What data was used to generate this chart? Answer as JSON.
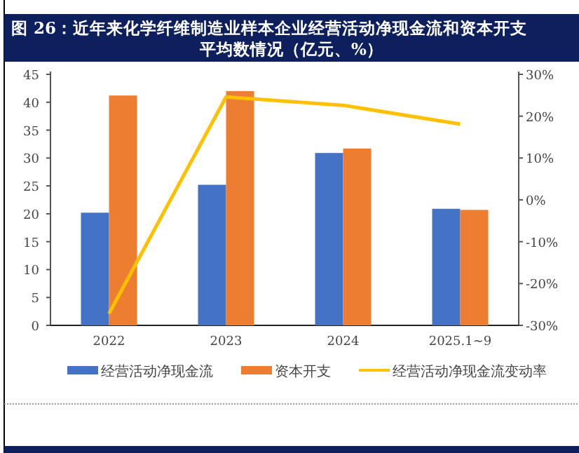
{
  "chart_data": {
    "type": "bar",
    "title": "图 26：近年来化学纤维制造业样本企业经营活动净现金流和资本开支平均数情况（亿元、%）",
    "categories": [
      "2022",
      "2023",
      "2024",
      "2025.1~9"
    ],
    "series": [
      {
        "name": "经营活动净现金流",
        "color": "#4472c4",
        "values": [
          20.2,
          25.2,
          30.9,
          20.9
        ]
      },
      {
        "name": "资本开支",
        "color": "#ed7d31",
        "values": [
          41.2,
          42.0,
          31.7,
          20.7
        ]
      },
      {
        "name": "经营活动净现金流变动率",
        "type": "line",
        "axis": "y2",
        "color": "#ffc000",
        "values": [
          -27.2,
          24.6,
          22.6,
          18.1
        ]
      }
    ],
    "ylim": [
      0,
      45
    ],
    "yticks": [
      0,
      5,
      10,
      15,
      20,
      25,
      30,
      35,
      40,
      45
    ],
    "y2lim": [
      -30,
      30
    ],
    "y2ticks": [
      {
        "value": -30,
        "label": "-30%"
      },
      {
        "value": -20,
        "label": "-20%"
      },
      {
        "value": -10,
        "label": "-10%"
      },
      {
        "value": 0,
        "label": "0%"
      },
      {
        "value": 10,
        "label": "10%"
      },
      {
        "value": 20,
        "label": "20%"
      },
      {
        "value": 30,
        "label": "30%"
      }
    ],
    "legend": "bottom",
    "grid": false
  }
}
